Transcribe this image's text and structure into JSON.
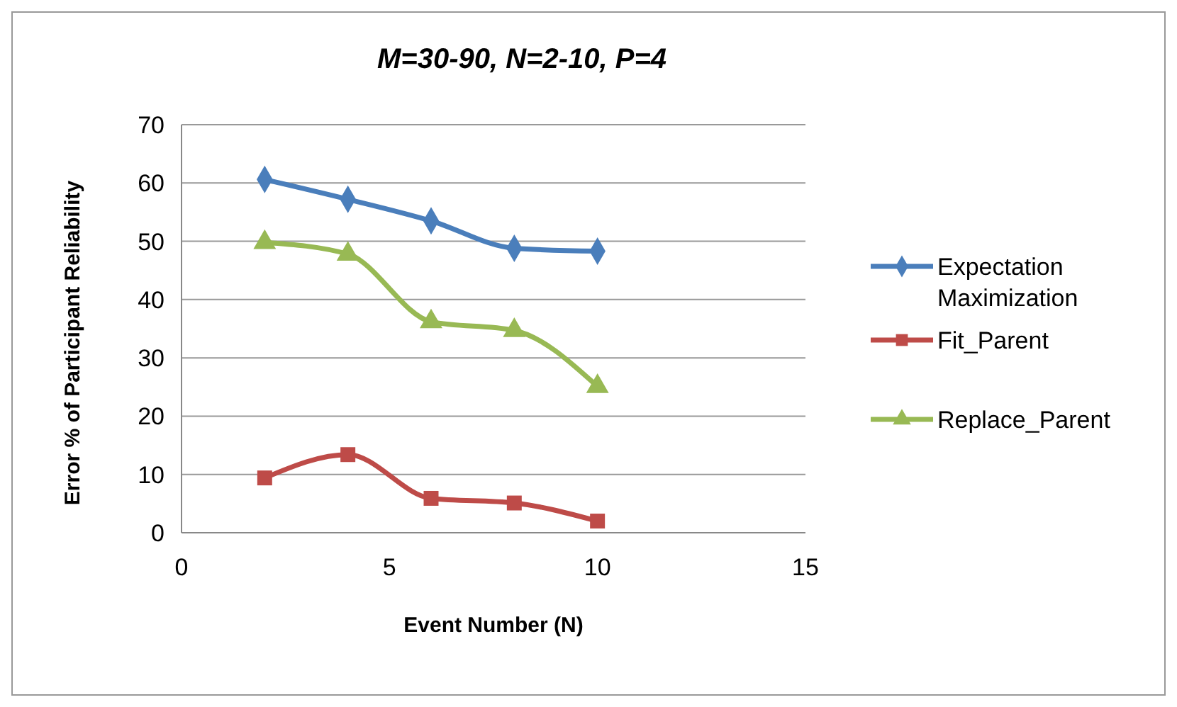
{
  "chart_data": {
    "type": "line",
    "title": "M=30-90, N=2-10, P=4",
    "xlabel": "Event Number (N)",
    "ylabel": "Error % of Participant Reliability",
    "x": [
      2,
      4,
      6,
      8,
      10
    ],
    "series": [
      {
        "name": "Expectation Maximization",
        "color": "#4a7ebb",
        "values": [
          60.6,
          57.2,
          53.5,
          48.8,
          48.3
        ],
        "marker": "diamond"
      },
      {
        "name": "Fit_Parent",
        "color": "#be4b48",
        "values": [
          9.4,
          13.4,
          5.9,
          5.1,
          2.0
        ],
        "marker": "square"
      },
      {
        "name": "Replace_Parent",
        "color": "#98b954",
        "values": [
          49.8,
          47.8,
          36.2,
          34.7,
          25.1
        ],
        "marker": "triangle"
      }
    ],
    "xlim": [
      0,
      15
    ],
    "xticks": [
      0,
      5,
      10,
      15
    ],
    "ylim": [
      0,
      70
    ],
    "yticks": [
      0,
      10,
      20,
      30,
      40,
      50,
      60,
      70
    ],
    "grid": "y",
    "legend": "right"
  }
}
